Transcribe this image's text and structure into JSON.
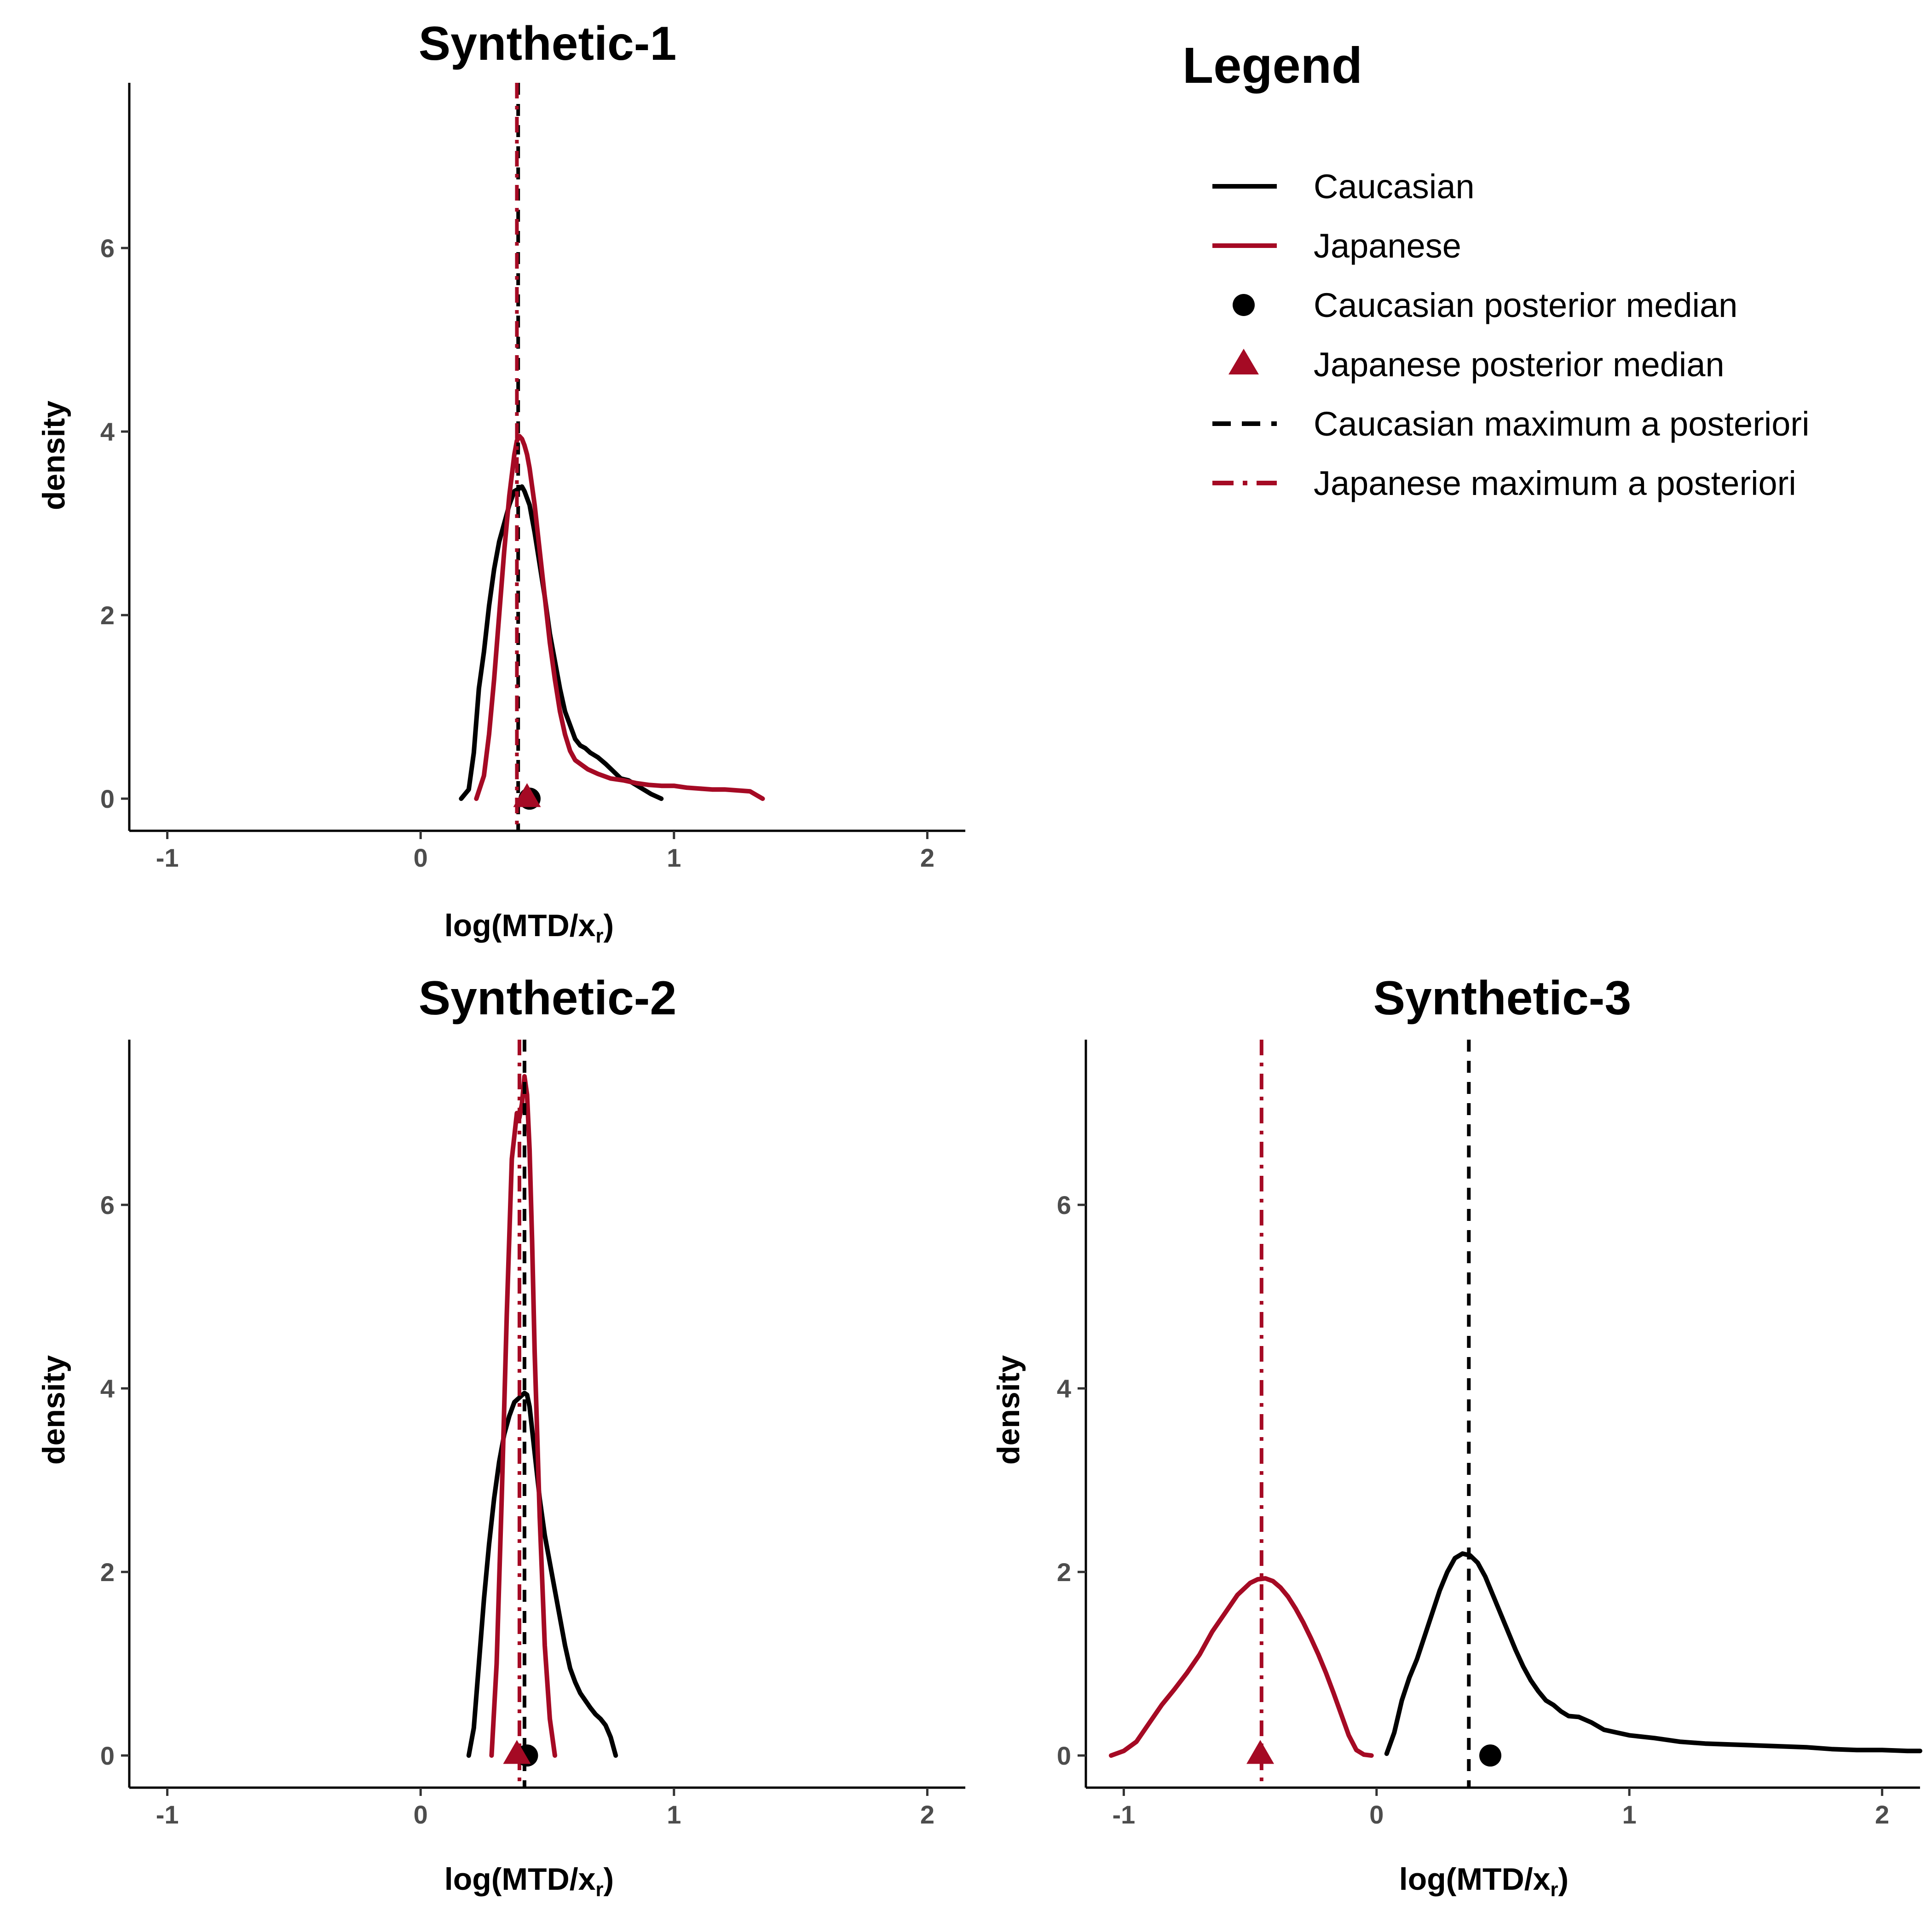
{
  "colors": {
    "caucasian": "#000000",
    "japanese": "#A50A24"
  },
  "legend": {
    "title": "Legend",
    "items": [
      {
        "label": "Caucasian",
        "kind": "line",
        "color": "#000000"
      },
      {
        "label": "Japanese",
        "kind": "line",
        "color": "#A50A24"
      },
      {
        "label": "Caucasian posterior median",
        "kind": "circle",
        "color": "#000000"
      },
      {
        "label": "Japanese posterior median",
        "kind": "triangle",
        "color": "#A50A24"
      },
      {
        "label": "Caucasian maximum a posteriori",
        "kind": "dash",
        "color": "#000000"
      },
      {
        "label": "Japanese maximum a posteriori",
        "kind": "dashdot",
        "color": "#A50A24"
      }
    ]
  },
  "chart_data": [
    {
      "type": "line",
      "title": "Synthetic-1",
      "xlabel": "log(MTD/x_r)",
      "ylabel": "density",
      "xlim": [
        -1.15,
        2.15
      ],
      "ylim": [
        -0.35,
        7.8
      ],
      "xticks": [
        -1,
        0,
        1,
        2
      ],
      "yticks": [
        0,
        2,
        4,
        6
      ],
      "series": [
        {
          "name": "Caucasian",
          "color": "#000000",
          "x": [
            0.16,
            0.19,
            0.21,
            0.23,
            0.25,
            0.27,
            0.29,
            0.31,
            0.33,
            0.35,
            0.37,
            0.39,
            0.4,
            0.41,
            0.43,
            0.45,
            0.47,
            0.49,
            0.51,
            0.53,
            0.55,
            0.57,
            0.59,
            0.61,
            0.63,
            0.65,
            0.67,
            0.7,
            0.73,
            0.76,
            0.79,
            0.82,
            0.85,
            0.88,
            0.91,
            0.95
          ],
          "y": [
            0.0,
            0.1,
            0.5,
            1.2,
            1.6,
            2.1,
            2.5,
            2.8,
            3.0,
            3.2,
            3.35,
            3.38,
            3.4,
            3.35,
            3.2,
            2.9,
            2.55,
            2.2,
            1.8,
            1.5,
            1.2,
            0.95,
            0.8,
            0.65,
            0.58,
            0.55,
            0.5,
            0.45,
            0.38,
            0.3,
            0.22,
            0.2,
            0.15,
            0.1,
            0.05,
            0.0
          ]
        },
        {
          "name": "Japanese",
          "color": "#A50A24",
          "x": [
            0.22,
            0.25,
            0.27,
            0.29,
            0.31,
            0.33,
            0.35,
            0.37,
            0.38,
            0.39,
            0.4,
            0.41,
            0.42,
            0.43,
            0.45,
            0.47,
            0.49,
            0.51,
            0.53,
            0.55,
            0.57,
            0.59,
            0.61,
            0.63,
            0.66,
            0.7,
            0.75,
            0.8,
            0.85,
            0.9,
            0.95,
            1.0,
            1.05,
            1.1,
            1.15,
            1.2,
            1.25,
            1.3,
            1.35
          ],
          "y": [
            0.0,
            0.25,
            0.7,
            1.3,
            2.0,
            2.7,
            3.3,
            3.75,
            3.9,
            3.95,
            3.92,
            3.85,
            3.75,
            3.6,
            3.2,
            2.7,
            2.2,
            1.7,
            1.3,
            0.95,
            0.7,
            0.52,
            0.42,
            0.38,
            0.32,
            0.27,
            0.22,
            0.2,
            0.17,
            0.15,
            0.14,
            0.14,
            0.12,
            0.11,
            0.1,
            0.1,
            0.09,
            0.08,
            0.0
          ]
        }
      ],
      "markers": [
        {
          "name": "Caucasian posterior median",
          "x": 0.43,
          "y": 0.0,
          "shape": "circle",
          "color": "#000000"
        },
        {
          "name": "Japanese posterior median",
          "x": 0.42,
          "y": 0.0,
          "shape": "triangle",
          "color": "#A50A24"
        }
      ],
      "vlines": [
        {
          "name": "Caucasian maximum a posteriori",
          "x": 0.385,
          "style": "dash",
          "color": "#000000"
        },
        {
          "name": "Japanese maximum a posteriori",
          "x": 0.38,
          "style": "dashdot",
          "color": "#A50A24"
        }
      ]
    },
    {
      "type": "line",
      "title": "Synthetic-2",
      "xlabel": "log(MTD/x_r)",
      "ylabel": "density",
      "xlim": [
        -1.15,
        2.15
      ],
      "ylim": [
        -0.35,
        7.8
      ],
      "xticks": [
        -1,
        0,
        1,
        2
      ],
      "yticks": [
        0,
        2,
        4,
        6
      ],
      "series": [
        {
          "name": "Caucasian",
          "color": "#000000",
          "x": [
            0.19,
            0.21,
            0.23,
            0.25,
            0.27,
            0.29,
            0.31,
            0.33,
            0.35,
            0.37,
            0.39,
            0.41,
            0.42,
            0.43,
            0.45,
            0.47,
            0.49,
            0.51,
            0.53,
            0.55,
            0.57,
            0.59,
            0.61,
            0.63,
            0.65,
            0.67,
            0.69,
            0.71,
            0.73,
            0.75,
            0.77
          ],
          "y": [
            0.0,
            0.3,
            1.0,
            1.7,
            2.3,
            2.8,
            3.2,
            3.5,
            3.7,
            3.85,
            3.9,
            3.95,
            3.93,
            3.8,
            3.3,
            2.8,
            2.4,
            2.1,
            1.8,
            1.5,
            1.2,
            0.95,
            0.8,
            0.68,
            0.6,
            0.52,
            0.45,
            0.4,
            0.33,
            0.2,
            0.0
          ]
        },
        {
          "name": "Japanese",
          "color": "#A50A24",
          "x": [
            0.28,
            0.3,
            0.32,
            0.34,
            0.36,
            0.38,
            0.39,
            0.4,
            0.41,
            0.42,
            0.43,
            0.44,
            0.45,
            0.47,
            0.49,
            0.51,
            0.53
          ],
          "y": [
            0.0,
            1.0,
            2.8,
            4.8,
            6.5,
            7.0,
            6.95,
            7.1,
            7.4,
            7.2,
            6.6,
            5.6,
            4.4,
            2.6,
            1.2,
            0.4,
            0.0
          ]
        }
      ],
      "markers": [
        {
          "name": "Caucasian posterior median",
          "x": 0.42,
          "y": 0.0,
          "shape": "circle",
          "color": "#000000"
        },
        {
          "name": "Japanese posterior median",
          "x": 0.38,
          "y": 0.0,
          "shape": "triangle",
          "color": "#A50A24"
        }
      ],
      "vlines": [
        {
          "name": "Caucasian maximum a posteriori",
          "x": 0.41,
          "style": "dash",
          "color": "#000000"
        },
        {
          "name": "Japanese maximum a posteriori",
          "x": 0.39,
          "style": "dashdot",
          "color": "#A50A24"
        }
      ]
    },
    {
      "type": "line",
      "title": "Synthetic-3",
      "xlabel": "log(MTD/x_r)",
      "ylabel": "density",
      "xlim": [
        -1.15,
        2.15
      ],
      "ylim": [
        -0.35,
        7.8
      ],
      "xticks": [
        -1,
        0,
        1,
        2
      ],
      "yticks": [
        0,
        2,
        4,
        6
      ],
      "series": [
        {
          "name": "Caucasian",
          "color": "#000000",
          "x": [
            0.04,
            0.07,
            0.1,
            0.13,
            0.16,
            0.19,
            0.22,
            0.25,
            0.28,
            0.31,
            0.34,
            0.37,
            0.4,
            0.43,
            0.46,
            0.49,
            0.52,
            0.55,
            0.58,
            0.61,
            0.64,
            0.67,
            0.7,
            0.73,
            0.76,
            0.8,
            0.85,
            0.9,
            0.95,
            1.0,
            1.1,
            1.2,
            1.3,
            1.4,
            1.5,
            1.6,
            1.7,
            1.8,
            1.9,
            2.0,
            2.1,
            2.15
          ],
          "y": [
            0.02,
            0.25,
            0.6,
            0.85,
            1.05,
            1.3,
            1.55,
            1.8,
            2.0,
            2.15,
            2.2,
            2.18,
            2.1,
            1.95,
            1.75,
            1.55,
            1.35,
            1.15,
            0.97,
            0.82,
            0.7,
            0.6,
            0.55,
            0.48,
            0.43,
            0.42,
            0.36,
            0.28,
            0.25,
            0.22,
            0.19,
            0.15,
            0.13,
            0.12,
            0.11,
            0.1,
            0.09,
            0.07,
            0.06,
            0.06,
            0.05,
            0.05
          ]
        },
        {
          "name": "Japanese",
          "color": "#A50A24",
          "x": [
            -1.05,
            -1.0,
            -0.95,
            -0.9,
            -0.85,
            -0.8,
            -0.75,
            -0.7,
            -0.65,
            -0.6,
            -0.55,
            -0.5,
            -0.47,
            -0.44,
            -0.41,
            -0.38,
            -0.35,
            -0.32,
            -0.29,
            -0.26,
            -0.23,
            -0.2,
            -0.17,
            -0.14,
            -0.11,
            -0.08,
            -0.05,
            -0.02
          ],
          "y": [
            0.0,
            0.05,
            0.15,
            0.35,
            0.55,
            0.72,
            0.9,
            1.1,
            1.35,
            1.55,
            1.75,
            1.88,
            1.92,
            1.93,
            1.9,
            1.83,
            1.73,
            1.6,
            1.45,
            1.28,
            1.1,
            0.9,
            0.68,
            0.45,
            0.22,
            0.06,
            0.01,
            0.0
          ]
        }
      ],
      "markers": [
        {
          "name": "Caucasian posterior median",
          "x": 0.45,
          "y": 0.0,
          "shape": "circle",
          "color": "#000000"
        },
        {
          "name": "Japanese posterior median",
          "x": -0.46,
          "y": 0.0,
          "shape": "triangle",
          "color": "#A50A24"
        }
      ],
      "vlines": [
        {
          "name": "Caucasian maximum a posteriori",
          "x": 0.365,
          "style": "dash",
          "color": "#000000"
        },
        {
          "name": "Japanese maximum a posteriori",
          "x": -0.455,
          "style": "dashdot",
          "color": "#A50A24"
        }
      ]
    }
  ]
}
